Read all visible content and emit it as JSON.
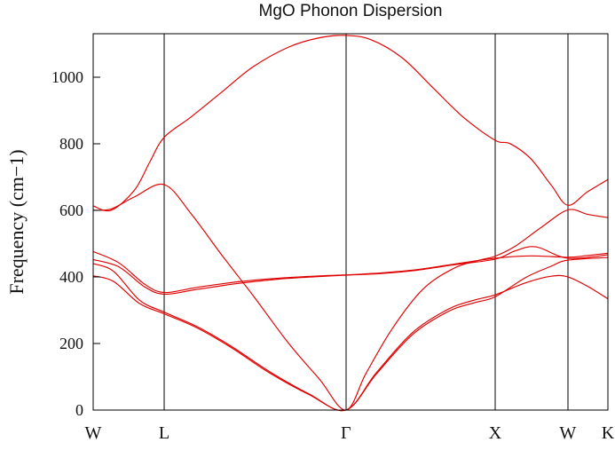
{
  "page": {
    "background": "#ffffff"
  },
  "chart_data": {
    "type": "line",
    "title": "MgO Phonon Dispersion",
    "ylabel": "Frequency (cm−1)",
    "xlabel": "",
    "ylim": [
      0,
      1130
    ],
    "yticks": [
      0,
      200,
      400,
      600,
      800,
      1000
    ],
    "x_ticks": {
      "positions": [
        0,
        0.138,
        0.491,
        0.781,
        0.922,
        1.0
      ],
      "labels": [
        "W",
        "L",
        "Γ",
        "X",
        "W",
        "K"
      ]
    },
    "legend": "none",
    "grid": "vertical lines at interior high-symmetry points",
    "axis_color": "#000000",
    "line_color": "#e00000",
    "series": [
      {
        "name": "branch-1-upper-optical",
        "points": [
          [
            0,
            613
          ],
          [
            0.035,
            600
          ],
          [
            0.08,
            660
          ],
          [
            0.11,
            745
          ],
          [
            0.138,
            819
          ],
          [
            0.19,
            880
          ],
          [
            0.25,
            955
          ],
          [
            0.31,
            1030
          ],
          [
            0.38,
            1090
          ],
          [
            0.44,
            1118
          ],
          [
            0.491,
            1125
          ],
          [
            0.54,
            1112
          ],
          [
            0.6,
            1058
          ],
          [
            0.66,
            968
          ],
          [
            0.72,
            878
          ],
          [
            0.781,
            810
          ],
          [
            0.81,
            800
          ],
          [
            0.85,
            755
          ],
          [
            0.89,
            675
          ],
          [
            0.922,
            615
          ],
          [
            0.96,
            655
          ],
          [
            1,
            692
          ]
        ]
      },
      {
        "name": "branch-2-crossing",
        "points": [
          [
            0,
            600
          ],
          [
            0.035,
            604
          ],
          [
            0.08,
            640
          ],
          [
            0.138,
            677
          ],
          [
            0.19,
            590
          ],
          [
            0.25,
            465
          ],
          [
            0.31,
            345
          ],
          [
            0.38,
            200
          ],
          [
            0.44,
            92
          ],
          [
            0.491,
            0
          ],
          [
            0.53,
            110
          ],
          [
            0.58,
            242
          ],
          [
            0.64,
            362
          ],
          [
            0.7,
            425
          ],
          [
            0.75,
            450
          ],
          [
            0.781,
            462
          ],
          [
            0.82,
            492
          ],
          [
            0.87,
            548
          ],
          [
            0.922,
            601
          ],
          [
            0.96,
            588
          ],
          [
            1,
            578
          ]
        ]
      },
      {
        "name": "branch-3-to-upper",
        "points": [
          [
            0,
            476
          ],
          [
            0.05,
            442
          ],
          [
            0.1,
            378
          ],
          [
            0.138,
            353
          ],
          [
            0.2,
            368
          ],
          [
            0.28,
            385
          ],
          [
            0.36,
            396
          ],
          [
            0.44,
            403
          ],
          [
            0.491,
            406
          ],
          [
            0.56,
            412
          ],
          [
            0.63,
            422
          ],
          [
            0.7,
            438
          ],
          [
            0.781,
            456
          ],
          [
            0.85,
            463
          ],
          [
            0.922,
            459
          ],
          [
            0.96,
            464
          ],
          [
            1,
            471
          ]
        ]
      },
      {
        "name": "branch-4-to-lower",
        "points": [
          [
            0,
            452
          ],
          [
            0.05,
            430
          ],
          [
            0.1,
            370
          ],
          [
            0.138,
            348
          ],
          [
            0.2,
            362
          ],
          [
            0.28,
            380
          ],
          [
            0.36,
            393
          ],
          [
            0.44,
            401
          ],
          [
            0.491,
            405
          ],
          [
            0.56,
            410
          ],
          [
            0.63,
            420
          ],
          [
            0.7,
            436
          ],
          [
            0.781,
            453
          ],
          [
            0.82,
            478
          ],
          [
            0.86,
            490
          ],
          [
            0.922,
            456
          ],
          [
            1,
            466
          ]
        ]
      },
      {
        "name": "branch-5-ta-upper",
        "points": [
          [
            0,
            440
          ],
          [
            0.04,
            416
          ],
          [
            0.09,
            330
          ],
          [
            0.138,
            294
          ],
          [
            0.2,
            252
          ],
          [
            0.27,
            190
          ],
          [
            0.34,
            118
          ],
          [
            0.42,
            48
          ],
          [
            0.491,
            0
          ],
          [
            0.55,
            112
          ],
          [
            0.62,
            232
          ],
          [
            0.69,
            303
          ],
          [
            0.74,
            330
          ],
          [
            0.781,
            346
          ],
          [
            0.84,
            382
          ],
          [
            0.89,
            402
          ],
          [
            0.922,
            400
          ],
          [
            0.96,
            372
          ],
          [
            1,
            334
          ]
        ]
      },
      {
        "name": "branch-6-ta-lower",
        "points": [
          [
            0,
            403
          ],
          [
            0.04,
            386
          ],
          [
            0.09,
            320
          ],
          [
            0.138,
            289
          ],
          [
            0.2,
            248
          ],
          [
            0.27,
            186
          ],
          [
            0.34,
            114
          ],
          [
            0.42,
            46
          ],
          [
            0.491,
            0
          ],
          [
            0.55,
            108
          ],
          [
            0.62,
            226
          ],
          [
            0.69,
            296
          ],
          [
            0.74,
            322
          ],
          [
            0.781,
            340
          ],
          [
            0.84,
            398
          ],
          [
            0.89,
            432
          ],
          [
            0.922,
            450
          ],
          [
            1,
            458
          ]
        ]
      }
    ]
  }
}
